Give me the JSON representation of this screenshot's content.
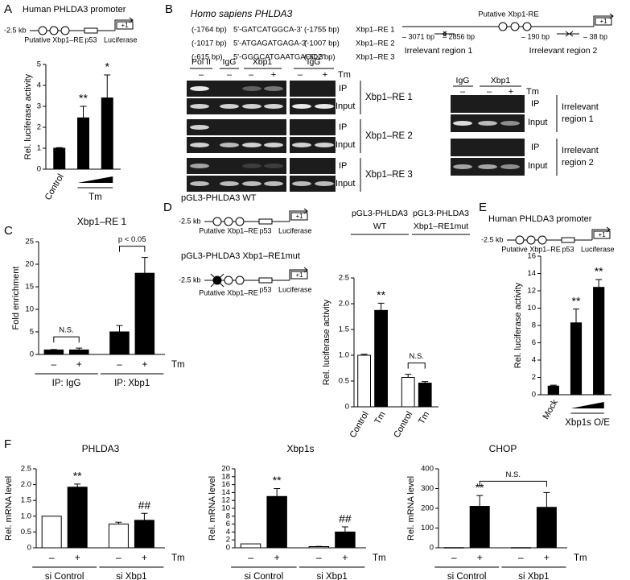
{
  "panel_letters": [
    "A",
    "B",
    "C",
    "D",
    "E",
    "F"
  ],
  "chart_data": [
    {
      "type": "bar",
      "ylabel": "Rel. luciferase activity",
      "categories": [
        "Control",
        null,
        null
      ],
      "values": [
        1.0,
        2.45,
        3.4
      ],
      "errors": [
        0.03,
        0.55,
        1.1
      ],
      "bar_colors": [
        "#000000",
        "#000000",
        "#000000"
      ],
      "ylim": [
        0,
        5
      ],
      "yticks": [
        0,
        1,
        2,
        3,
        4,
        5
      ],
      "significance": [
        null,
        "**",
        "*"
      ],
      "groups": [
        "Tm"
      ]
    },
    {
      "type": "bar",
      "title": "Xbp1–RE 1",
      "ylabel": "Fold enrichment",
      "categories": [
        "–",
        "+",
        "–",
        "+"
      ],
      "values": [
        1.0,
        1.0,
        5.0,
        18.0
      ],
      "errors": [
        0.1,
        0.4,
        1.4,
        3.5
      ],
      "bar_colors": [
        "#000000",
        "#000000",
        "#000000",
        "#000000"
      ],
      "ylim": [
        0,
        25
      ],
      "yticks": [
        0,
        5,
        10,
        15,
        20,
        25
      ],
      "groups": [
        "IP: IgG",
        "IP: Xbp1"
      ],
      "factor_label": "Tm",
      "brackets": [
        "N.S.",
        "p < 0.05"
      ]
    },
    {
      "type": "bar",
      "ylabel": "Rel. luciferase activity",
      "categories": [
        "Control",
        "Tm",
        "Control",
        "Tm"
      ],
      "values": [
        1.0,
        1.87,
        0.57,
        0.46
      ],
      "errors": [
        0.02,
        0.14,
        0.06,
        0.03
      ],
      "bar_colors": [
        "#ffffff",
        "#000000",
        "#ffffff",
        "#000000"
      ],
      "ylim": [
        0,
        2.5
      ],
      "yticks": [
        0,
        0.5,
        {
          "value": 1,
          "label": "1.0"
        },
        1.5,
        {
          "value": 2,
          "label": "2.0"
        },
        2.5
      ],
      "significance": [
        null,
        "**",
        null,
        null
      ],
      "brackets": [
        "N.S."
      ],
      "group_headers": [
        [
          "pGL3-PHLDA3",
          "WT"
        ],
        [
          "pGL3-PHLDA3",
          "Xbp1–RE1mut"
        ]
      ]
    },
    {
      "type": "bar",
      "ylabel": "Rel. luciferase activity",
      "categories": [
        "Mock",
        null,
        null
      ],
      "values": [
        1.0,
        8.3,
        12.4
      ],
      "errors": [
        0.1,
        1.6,
        0.9
      ],
      "bar_colors": [
        "#000000",
        "#000000",
        "#000000"
      ],
      "ylim": [
        0,
        16
      ],
      "yticks": [
        0,
        2,
        4,
        6,
        8,
        10,
        12,
        14,
        16
      ],
      "significance": [
        null,
        "**",
        "**"
      ],
      "groups": [
        "Xbp1s O/E"
      ]
    },
    {
      "type": "bar",
      "title": "PHLDA3",
      "ylabel": "Rel. mRNA level",
      "categories": [
        "–",
        "+",
        "–",
        "+"
      ],
      "values": [
        1.0,
        1.92,
        0.75,
        0.87
      ],
      "errors": [
        null,
        0.1,
        0.06,
        0.22
      ],
      "bar_colors": [
        "#ffffff",
        "#000000",
        "#ffffff",
        "#000000"
      ],
      "ylim": [
        0,
        2.5
      ],
      "yticks": [
        0,
        0.5,
        {
          "value": 1,
          "label": "1.0"
        },
        1.5,
        {
          "value": 2,
          "label": "2.0"
        },
        2.5
      ],
      "significance": [
        null,
        "**",
        null,
        "##"
      ],
      "groups": [
        "si Control",
        "si Xbp1"
      ],
      "factor_label": "Tm"
    },
    {
      "type": "bar",
      "title": "Xbp1s",
      "ylabel": "Rel. mRNA level",
      "categories": [
        "–",
        "+",
        "–",
        "+"
      ],
      "values": [
        1.0,
        13.0,
        0.3,
        4.0
      ],
      "errors": [
        null,
        2.0,
        0.05,
        1.3
      ],
      "bar_colors": [
        "#ffffff",
        "#000000",
        "#ffffff",
        "#000000"
      ],
      "ylim": [
        0,
        20
      ],
      "yticks": [
        0,
        2,
        4,
        6,
        8,
        10,
        12,
        14,
        16,
        18,
        20
      ],
      "significance": [
        null,
        "**",
        null,
        "##"
      ],
      "groups": [
        "si Control",
        "si Xbp1"
      ],
      "factor_label": "Tm"
    },
    {
      "type": "bar",
      "title": "CHOP",
      "ylabel": "Rel. mRNA level",
      "categories": [
        "–",
        "+",
        "–",
        "+"
      ],
      "values": [
        1,
        210,
        1,
        205
      ],
      "errors": [
        null,
        55,
        null,
        75
      ],
      "bar_colors": [
        "#ffffff",
        "#000000",
        "#ffffff",
        "#000000"
      ],
      "ylim": [
        0,
        400
      ],
      "yticks": [
        0,
        100,
        200,
        300,
        400
      ],
      "significance": [
        null,
        "**",
        null,
        null
      ],
      "groups": [
        "si Control",
        "si Xbp1"
      ],
      "factor_label": "Tm",
      "brackets": [
        "N.S."
      ]
    }
  ],
  "promoter_a": {
    "title": "Human PHLDA3 promoter",
    "start": "-2.5 kb",
    "tss": "+1",
    "element": "Putative Xbp1–RE",
    "p53": "p53",
    "reporter": "Luciferase"
  },
  "promoter_d_wt": {
    "title": "pGL3-PHLDA3  WT",
    "start": "-2.5 kb",
    "tss": "+1",
    "element": "Putative Xbp1–RE",
    "p53": "p53",
    "reporter": "Luciferase"
  },
  "promoter_d_mut": {
    "title": "pGL3-PHLDA3  Xbp1–RE1mut",
    "start": "-2.5 kb",
    "tss": "+1",
    "element": "Putative Xbp1–RE",
    "p53": "p53",
    "reporter": "Luciferase"
  },
  "promoter_e": {
    "title": "Human PHLDA3 promoter",
    "start": "-2.5 kb",
    "tss": "+1",
    "element": "Putative Xbp1–RE",
    "p53": "p53",
    "reporter": "Luciferase"
  },
  "panel_b": {
    "title": "Homo sapiens PHLDA3",
    "sites": [
      [
        "(-1764 bp)",
        "5'-GATCATGGCA-3'",
        "(-1755 bp)",
        "Xbp1–RE 1"
      ],
      [
        "(-1017 bp)",
        "5'-ATGAGATGAGA-3'",
        "(-1007 bp)",
        "Xbp1–RE 2"
      ],
      [
        "(-615 bp)",
        "5'-GGGCATGAATGACC-3'",
        "(-602 bp)",
        "Xbp1–RE 3"
      ]
    ],
    "gel_headers": [
      "Pol II",
      "IgG",
      "Xbp1",
      "IgG"
    ],
    "tm_signs": [
      "–",
      "–",
      "–",
      "+",
      "–",
      "+"
    ],
    "tm_label": "Tm",
    "rows": [
      {
        "ip": "IP",
        "input": "Input",
        "region": "Xbp1–RE 1"
      },
      {
        "ip": "IP",
        "input": "Input",
        "region": "Xbp1–RE 2"
      },
      {
        "ip": "IP",
        "input": "Input",
        "region": "Xbp1–RE 3"
      }
    ]
  },
  "panel_b_right": {
    "site_label": "Putative Xbp1-RE",
    "tss": "+1",
    "positions": [
      "– 3071 bp",
      "– 2856 bp",
      "– 190 bp",
      "– 38 bp"
    ],
    "regions": [
      "Irrelevant region 1",
      "Irrelevant region 2"
    ],
    "gel_headers": [
      "IgG",
      "Xbp1"
    ],
    "tm_signs": [
      "–",
      "–",
      "+"
    ],
    "tm_label": "Tm",
    "rows": [
      {
        "ip": "IP",
        "input": "Input",
        "region": [
          "Irrelevant",
          "region 1"
        ]
      },
      {
        "ip": "IP",
        "input": "Input",
        "region": [
          "Irrelevant",
          "region 2"
        ]
      }
    ]
  }
}
